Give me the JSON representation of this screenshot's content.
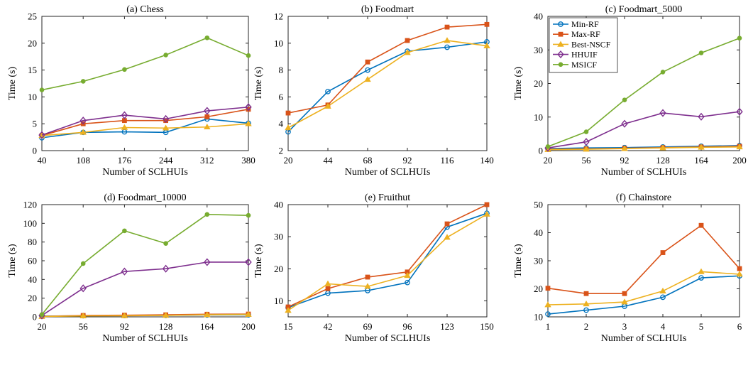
{
  "chart_data": [
    {
      "type": "line",
      "title": "(a) Chess",
      "xlabel": "Number of SCLHUIs",
      "ylabel": "Time (s)",
      "x": [
        40,
        108,
        176,
        244,
        312,
        380
      ],
      "xticks": [
        "40",
        "108",
        "176",
        "244",
        "312",
        "380"
      ],
      "ylim": [
        0,
        25
      ],
      "yticks": [
        0,
        5,
        10,
        15,
        20,
        25
      ],
      "series": [
        {
          "name": "Min-RF",
          "color": "#0072BD",
          "marker": "circle",
          "values": [
            2.4,
            3.4,
            3.5,
            3.4,
            5.9,
            5.1
          ]
        },
        {
          "name": "Max-RF",
          "color": "#D95319",
          "marker": "square",
          "values": [
            2.8,
            5.0,
            5.6,
            5.6,
            6.3,
            7.7
          ]
        },
        {
          "name": "Best-NSCF",
          "color": "#EDB120",
          "marker": "triangle",
          "values": [
            2.8,
            3.4,
            4.3,
            4.2,
            4.4,
            5.0
          ]
        },
        {
          "name": "HHUIF",
          "color": "#7E2F8E",
          "marker": "diamond",
          "values": [
            2.9,
            5.6,
            6.6,
            5.9,
            7.4,
            8.1
          ]
        },
        {
          "name": "MSICF",
          "color": "#77AC30",
          "marker": "dot",
          "values": [
            11.3,
            12.9,
            15.1,
            17.8,
            21.0,
            17.7
          ]
        }
      ]
    },
    {
      "type": "line",
      "title": "(b) Foodmart",
      "xlabel": "Number of SCLHUIs",
      "ylabel": "Time (s)",
      "x": [
        20,
        44,
        68,
        92,
        116,
        140
      ],
      "xticks": [
        "20",
        "44",
        "68",
        "92",
        "116",
        "140"
      ],
      "ylim": [
        2,
        12
      ],
      "yticks": [
        2,
        4,
        6,
        8,
        10,
        12
      ],
      "series": [
        {
          "name": "Min-RF",
          "color": "#0072BD",
          "marker": "circle",
          "values": [
            3.4,
            6.4,
            8.0,
            9.4,
            9.7,
            10.1
          ]
        },
        {
          "name": "Max-RF",
          "color": "#D95319",
          "marker": "square",
          "values": [
            4.8,
            5.4,
            8.6,
            10.2,
            11.2,
            11.4
          ]
        },
        {
          "name": "Best-NSCF",
          "color": "#EDB120",
          "marker": "triangle",
          "values": [
            3.7,
            5.3,
            7.3,
            9.3,
            10.2,
            9.8
          ]
        }
      ]
    },
    {
      "type": "line",
      "title": "(c) Foodmart_5000",
      "xlabel": "Number of SCLHUIs",
      "ylabel": "Time (s)",
      "x": [
        20,
        56,
        92,
        128,
        164,
        200
      ],
      "xticks": [
        "20",
        "56",
        "92",
        "128",
        "164",
        "200"
      ],
      "ylim": [
        0,
        40
      ],
      "yticks": [
        0,
        10,
        20,
        30,
        40
      ],
      "legend": "top-left",
      "series": [
        {
          "name": "Min-RF",
          "color": "#0072BD",
          "marker": "circle",
          "values": [
            0.6,
            0.8,
            0.9,
            1.1,
            1.3,
            1.5
          ]
        },
        {
          "name": "Max-RF",
          "color": "#D95319",
          "marker": "square",
          "values": [
            0.4,
            0.5,
            0.7,
            0.9,
            1.1,
            1.3
          ]
        },
        {
          "name": "Best-NSCF",
          "color": "#EDB120",
          "marker": "triangle",
          "values": [
            0.3,
            0.4,
            0.6,
            0.8,
            1.0,
            1.1
          ]
        },
        {
          "name": "HHUIF",
          "color": "#7E2F8E",
          "marker": "diamond",
          "values": [
            0.8,
            2.6,
            8.0,
            11.2,
            10.1,
            11.6
          ]
        },
        {
          "name": "MSICF",
          "color": "#77AC30",
          "marker": "dot",
          "values": [
            1.2,
            5.6,
            15.1,
            23.4,
            29.1,
            33.5
          ]
        }
      ]
    },
    {
      "type": "line",
      "title": "(d) Foodmart_10000",
      "xlabel": "Number of SCLHUIs",
      "ylabel": "Time (s)",
      "x": [
        20,
        56,
        92,
        128,
        164,
        200
      ],
      "xticks": [
        "20",
        "56",
        "92",
        "128",
        "164",
        "200"
      ],
      "ylim": [
        0,
        120
      ],
      "yticks": [
        0,
        20,
        40,
        60,
        80,
        100,
        120
      ],
      "series": [
        {
          "name": "Min-RF",
          "color": "#0072BD",
          "marker": "circle",
          "values": [
            0.8,
            1.2,
            1.4,
            1.6,
            2.0,
            2.2
          ]
        },
        {
          "name": "Max-RF",
          "color": "#D95319",
          "marker": "square",
          "values": [
            0.5,
            1.5,
            1.8,
            2.2,
            2.8,
            3.0
          ]
        },
        {
          "name": "Best-NSCF",
          "color": "#EDB120",
          "marker": "triangle",
          "values": [
            0.4,
            1.0,
            1.2,
            1.6,
            2.2,
            2.6
          ]
        },
        {
          "name": "HHUIF",
          "color": "#7E2F8E",
          "marker": "diamond",
          "values": [
            1.5,
            30.5,
            48.5,
            51.5,
            58.5,
            58.5
          ]
        },
        {
          "name": "MSICF",
          "color": "#77AC30",
          "marker": "dot",
          "values": [
            2.5,
            57.0,
            92.0,
            78.5,
            109.5,
            108.5
          ]
        }
      ]
    },
    {
      "type": "line",
      "title": "(e) Fruithut",
      "xlabel": "Number of SCLHUIs",
      "ylabel": "Time (s)",
      "x": [
        15,
        42,
        69,
        96,
        123,
        150
      ],
      "xticks": [
        "15",
        "42",
        "69",
        "96",
        "123",
        "150"
      ],
      "ylim": [
        5,
        40
      ],
      "yticks": [
        10,
        20,
        30,
        40
      ],
      "series": [
        {
          "name": "Min-RF",
          "color": "#0072BD",
          "marker": "circle",
          "values": [
            7.9,
            12.4,
            13.2,
            15.7,
            33.0,
            37.3
          ]
        },
        {
          "name": "Max-RF",
          "color": "#D95319",
          "marker": "square",
          "values": [
            8.1,
            13.8,
            17.4,
            19.0,
            34.0,
            40.0
          ]
        },
        {
          "name": "Best-NSCF",
          "color": "#EDB120",
          "marker": "triangle",
          "values": [
            7.0,
            15.3,
            14.5,
            17.9,
            29.8,
            37.0
          ]
        }
      ]
    },
    {
      "type": "line",
      "title": "(f) Chainstore",
      "xlabel": "Number of SCLHUIs",
      "ylabel": "Time (s)",
      "x": [
        1,
        2,
        3,
        4,
        5,
        6
      ],
      "xticks": [
        "1",
        "2",
        "3",
        "4",
        "5",
        "6"
      ],
      "ylim": [
        10,
        50
      ],
      "yticks": [
        10,
        20,
        30,
        40,
        50
      ],
      "series": [
        {
          "name": "Min-RF",
          "color": "#0072BD",
          "marker": "circle",
          "values": [
            11.0,
            12.4,
            13.8,
            17.0,
            23.9,
            24.6
          ]
        },
        {
          "name": "Max-RF",
          "color": "#D95319",
          "marker": "square",
          "values": [
            20.2,
            18.3,
            18.3,
            32.9,
            42.6,
            27.2
          ]
        },
        {
          "name": "Best-NSCF",
          "color": "#EDB120",
          "marker": "triangle",
          "values": [
            14.3,
            14.6,
            15.3,
            19.2,
            26.1,
            25.2
          ]
        }
      ]
    }
  ]
}
